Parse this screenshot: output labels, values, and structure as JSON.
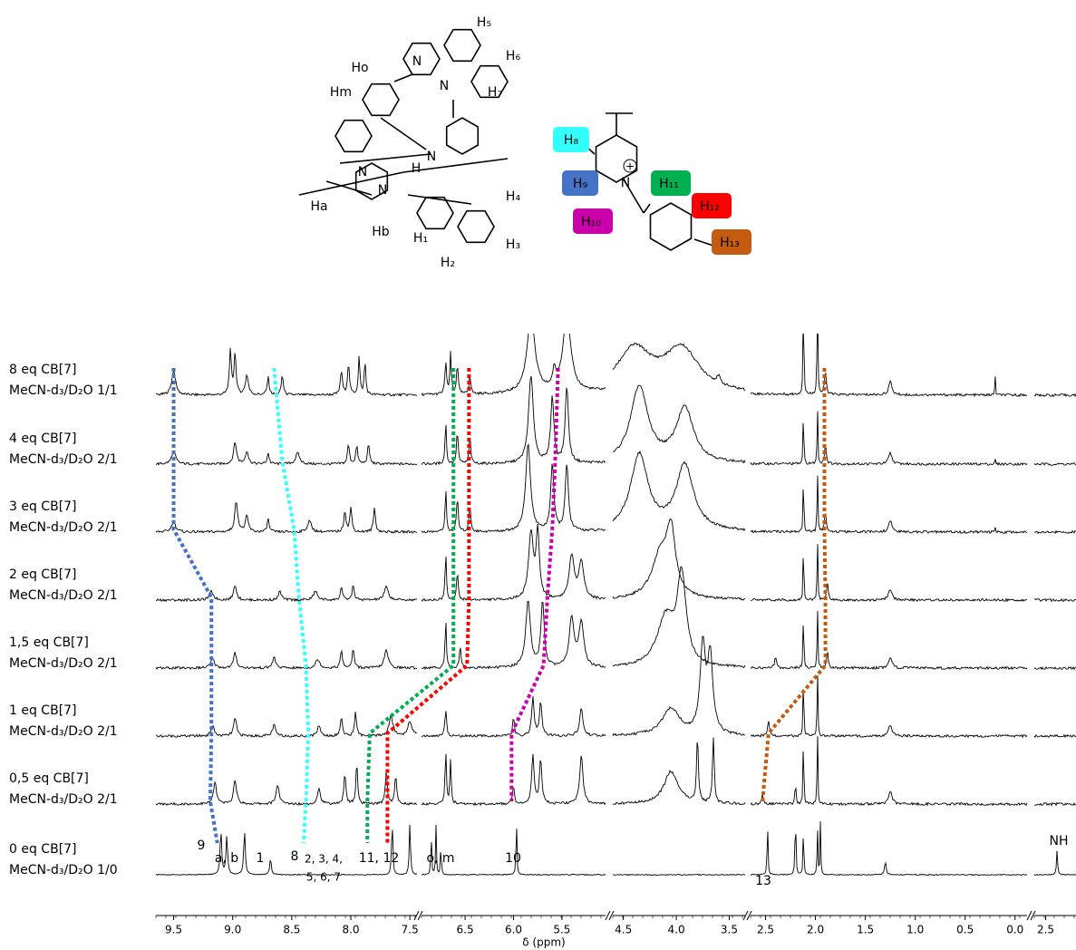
{
  "figure": {
    "axis": {
      "label": "δ (ppm)",
      "segments": [
        {
          "xlim": [
            9.65,
            7.44
          ],
          "xticks": [
            9.5,
            {
              "value": 9,
              "label": "9.0"
            },
            8.5,
            {
              "value": 8,
              "label": "8.0"
            },
            7.5
          ]
        },
        {
          "xlim": [
            6.95,
            5.05
          ],
          "xticks": [
            6.5,
            {
              "value": 6,
              "label": "6.0"
            },
            5.5
          ]
        },
        {
          "xlim": [
            4.6,
            3.35
          ],
          "xticks": [
            4.5,
            {
              "value": 4,
              "label": "4.0"
            },
            3.5
          ]
        },
        {
          "xlim": [
            2.65,
            -0.12
          ],
          "xticks": [
            2.5,
            {
              "value": 2,
              "label": "2.0"
            },
            1.5,
            {
              "value": 1,
              "label": "1.0"
            },
            0.5,
            {
              "value": 0,
              "label": "0.0"
            }
          ]
        },
        {
          "xlim": [
            -2.35,
            -2.9
          ],
          "xticks": [
            {
              "value": -2.5,
              "label": "2.5"
            }
          ]
        }
      ]
    },
    "spectra": [
      {
        "title": "8 eq CB[7]",
        "solvent": "MeCN-d₃/D₂O 1/1",
        "peaks": [
          [
            9.5,
            22,
            0.02
          ],
          [
            9.02,
            40,
            0.01
          ],
          [
            8.98,
            38,
            0.01
          ],
          [
            8.88,
            18,
            0.015
          ],
          [
            8.7,
            16,
            0.01
          ],
          [
            8.58,
            18,
            0.01
          ],
          [
            8.08,
            22,
            0.01
          ],
          [
            8.02,
            28,
            0.01
          ],
          [
            7.93,
            35,
            0.008
          ],
          [
            7.88,
            30,
            0.008
          ],
          [
            6.7,
            30,
            0.01
          ],
          [
            6.65,
            38,
            0.008
          ],
          [
            6.58,
            28,
            0.01
          ],
          [
            6.45,
            18,
            0.01
          ],
          [
            5.82,
            70,
            0.05
          ],
          [
            5.45,
            70,
            0.05
          ],
          [
            5.58,
            15,
            0.02
          ],
          [
            4.4,
            40,
            0.2
          ],
          [
            3.95,
            40,
            0.2
          ],
          [
            3.6,
            6,
            0.02
          ],
          [
            2.12,
            90,
            0.005
          ],
          [
            1.98,
            90,
            0.005
          ],
          [
            1.9,
            22,
            0.01
          ],
          [
            1.25,
            12,
            0.02
          ],
          [
            0.2,
            25,
            0.003
          ]
        ]
      },
      {
        "title": "4 eq CB[7]",
        "solvent": "MeCN-d₃/D₂O 2/1",
        "peaks": [
          [
            9.5,
            12,
            0.02
          ],
          [
            8.98,
            20,
            0.015
          ],
          [
            8.88,
            12,
            0.015
          ],
          [
            8.7,
            10,
            0.01
          ],
          [
            8.45,
            10,
            0.02
          ],
          [
            8.02,
            18,
            0.01
          ],
          [
            7.95,
            16,
            0.01
          ],
          [
            7.85,
            18,
            0.01
          ],
          [
            6.7,
            40,
            0.008
          ],
          [
            6.58,
            30,
            0.01
          ],
          [
            6.45,
            25,
            0.01
          ],
          [
            5.82,
            80,
            0.03
          ],
          [
            5.6,
            60,
            0.02
          ],
          [
            5.45,
            70,
            0.02
          ],
          [
            4.35,
            70,
            0.1
          ],
          [
            3.92,
            50,
            0.1
          ],
          [
            2.12,
            60,
            0.004
          ],
          [
            1.98,
            60,
            0.004
          ],
          [
            1.9,
            18,
            0.01
          ],
          [
            1.25,
            10,
            0.02
          ],
          [
            0.2,
            6,
            0.003
          ]
        ]
      },
      {
        "title": "3 eq CB[7]",
        "solvent": "MeCN-d₃/D₂O 2/1",
        "peaks": [
          [
            9.5,
            10,
            0.02
          ],
          [
            8.97,
            28,
            0.015
          ],
          [
            8.88,
            14,
            0.015
          ],
          [
            8.7,
            12,
            0.01
          ],
          [
            8.35,
            10,
            0.02
          ],
          [
            8.05,
            20,
            0.01
          ],
          [
            8.0,
            22,
            0.01
          ],
          [
            7.8,
            22,
            0.01
          ],
          [
            6.7,
            40,
            0.008
          ],
          [
            6.58,
            32,
            0.01
          ],
          [
            6.45,
            25,
            0.01
          ],
          [
            5.85,
            80,
            0.03
          ],
          [
            5.6,
            60,
            0.02
          ],
          [
            5.45,
            60,
            0.02
          ],
          [
            4.35,
            70,
            0.1
          ],
          [
            3.92,
            60,
            0.1
          ],
          [
            2.12,
            65,
            0.004
          ],
          [
            1.98,
            65,
            0.004
          ],
          [
            1.9,
            20,
            0.01
          ],
          [
            1.25,
            10,
            0.02
          ],
          [
            0.2,
            6,
            0.003
          ]
        ]
      },
      {
        "title": "2 eq CB[7]",
        "solvent": "MeCN-d₃/D₂O 2/1",
        "peaks": [
          [
            9.18,
            8,
            0.02
          ],
          [
            8.98,
            14,
            0.015
          ],
          [
            8.6,
            8,
            0.015
          ],
          [
            8.3,
            8,
            0.02
          ],
          [
            8.08,
            12,
            0.01
          ],
          [
            7.98,
            14,
            0.01
          ],
          [
            7.7,
            12,
            0.02
          ],
          [
            6.7,
            45,
            0.008
          ],
          [
            6.58,
            25,
            0.01
          ],
          [
            5.82,
            60,
            0.03
          ],
          [
            5.75,
            60,
            0.02
          ],
          [
            5.4,
            40,
            0.03
          ],
          [
            5.3,
            35,
            0.03
          ],
          [
            4.15,
            40,
            0.1
          ],
          [
            4.05,
            55,
            0.05
          ],
          [
            2.12,
            65,
            0.004
          ],
          [
            1.98,
            65,
            0.004
          ],
          [
            1.88,
            15,
            0.01
          ],
          [
            1.25,
            10,
            0.02
          ]
        ]
      },
      {
        "title": "1,5 eq CB[7]",
        "solvent": "MeCN-d₃/D₂O 2/1",
        "peaks": [
          [
            9.17,
            8,
            0.02
          ],
          [
            8.98,
            14,
            0.015
          ],
          [
            8.65,
            10,
            0.015
          ],
          [
            8.28,
            8,
            0.02
          ],
          [
            8.08,
            16,
            0.01
          ],
          [
            7.98,
            18,
            0.01
          ],
          [
            7.7,
            16,
            0.02
          ],
          [
            6.7,
            45,
            0.008
          ],
          [
            6.55,
            20,
            0.01
          ],
          [
            5.85,
            60,
            0.03
          ],
          [
            5.7,
            60,
            0.02
          ],
          [
            5.4,
            45,
            0.03
          ],
          [
            5.3,
            40,
            0.03
          ],
          [
            4.1,
            45,
            0.1
          ],
          [
            3.95,
            80,
            0.05
          ],
          [
            2.4,
            10,
            0.01
          ],
          [
            2.12,
            65,
            0.004
          ],
          [
            1.98,
            65,
            0.004
          ],
          [
            1.88,
            15,
            0.01
          ],
          [
            1.25,
            10,
            0.02
          ]
        ]
      },
      {
        "title": "1 eq CB[7]",
        "solvent": "MeCN-d₃/D₂O 2/1",
        "peaks": [
          [
            9.17,
            10,
            0.015
          ],
          [
            8.98,
            16,
            0.015
          ],
          [
            8.65,
            10,
            0.015
          ],
          [
            8.27,
            10,
            0.015
          ],
          [
            8.08,
            18,
            0.01
          ],
          [
            7.96,
            22,
            0.01
          ],
          [
            7.66,
            18,
            0.02
          ],
          [
            7.5,
            14,
            0.02
          ],
          [
            6.7,
            25,
            0.01
          ],
          [
            6.0,
            18,
            0.01
          ],
          [
            5.8,
            35,
            0.015
          ],
          [
            5.72,
            30,
            0.015
          ],
          [
            5.3,
            25,
            0.02
          ],
          [
            4.05,
            25,
            0.1
          ],
          [
            3.75,
            80,
            0.03
          ],
          [
            3.68,
            70,
            0.03
          ],
          [
            2.47,
            15,
            0.01
          ],
          [
            2.12,
            70,
            0.004
          ],
          [
            1.98,
            70,
            0.004
          ],
          [
            1.25,
            10,
            0.02
          ]
        ]
      },
      {
        "title": "0,5 eq CB[7]",
        "solvent": "MeCN-d₃/D₂O 2/1",
        "peaks": [
          [
            9.15,
            20,
            0.015
          ],
          [
            8.98,
            22,
            0.015
          ],
          [
            8.62,
            18,
            0.015
          ],
          [
            8.27,
            14,
            0.015
          ],
          [
            8.05,
            28,
            0.01
          ],
          [
            7.95,
            40,
            0.008
          ],
          [
            7.7,
            30,
            0.01
          ],
          [
            7.62,
            25,
            0.01
          ],
          [
            6.7,
            50,
            0.008
          ],
          [
            6.65,
            40,
            0.008
          ],
          [
            6.0,
            18,
            0.01
          ],
          [
            5.8,
            45,
            0.015
          ],
          [
            5.72,
            40,
            0.015
          ],
          [
            5.3,
            45,
            0.02
          ],
          [
            4.05,
            30,
            0.08
          ],
          [
            3.8,
            60,
            0.01
          ],
          [
            3.65,
            60,
            0.01
          ],
          [
            2.53,
            8,
            0.01
          ],
          [
            2.2,
            25,
            0.005
          ],
          [
            2.12,
            80,
            0.004
          ],
          [
            1.98,
            80,
            0.004
          ],
          [
            1.25,
            12,
            0.02
          ]
        ]
      },
      {
        "title": "0 eq CB[7]",
        "solvent": "MeCN-d₃/D₂O 1/0",
        "peaks": [
          [
            9.1,
            40,
            0.008
          ],
          [
            9.05,
            35,
            0.008
          ],
          [
            8.9,
            40,
            0.008
          ],
          [
            8.68,
            15,
            0.008
          ],
          [
            7.65,
            50,
            0.006
          ],
          [
            7.5,
            48,
            0.006
          ],
          [
            6.85,
            40,
            0.005
          ],
          [
            6.8,
            45,
            0.005
          ],
          [
            6.75,
            30,
            0.005
          ],
          [
            5.97,
            55,
            0.005
          ],
          [
            2.48,
            50,
            0.005
          ],
          [
            2.2,
            62,
            0.005
          ],
          [
            2.12,
            55,
            0.004
          ],
          [
            1.98,
            50,
            0.004
          ],
          [
            1.95,
            50,
            0.004
          ],
          [
            1.3,
            12,
            0.01
          ],
          [
            -2.65,
            22,
            0.008
          ]
        ]
      }
    ],
    "correlations": [
      {
        "color": "#4472c4",
        "ppm": [
          9.5,
          9.5,
          9.5,
          9.18,
          9.18,
          9.18,
          9.19,
          9.13
        ]
      },
      {
        "color": "#33ffff",
        "ppm": [
          8.65,
          8.58,
          8.48,
          8.44,
          8.38,
          8.36,
          8.38,
          8.4
        ]
      },
      {
        "color": "#00b050",
        "ppm": [
          6.62,
          6.62,
          6.62,
          6.62,
          6.62,
          7.84,
          7.86,
          7.86
        ]
      },
      {
        "color": "#ff0000",
        "ppm": [
          6.46,
          6.46,
          6.46,
          6.46,
          6.48,
          7.69,
          7.69,
          7.69
        ]
      },
      {
        "color": "#cc00aa",
        "ppm": [
          5.54,
          5.57,
          5.6,
          5.65,
          5.69,
          6.02,
          6.02,
          null
        ]
      },
      {
        "color": "#c55a11",
        "ppm": [
          1.91,
          1.91,
          1.91,
          1.9,
          1.9,
          2.47,
          2.53,
          null
        ]
      }
    ],
    "peak_labels": [
      "9",
      "a, b",
      "1",
      "8",
      "2, 3, 4,",
      "5, 6, 7",
      "11, 12",
      "o, m",
      "10",
      "13",
      "NH"
    ],
    "molecule_1": {
      "labels": [
        "H₅",
        "H₆",
        "H₇",
        "Ho",
        "Hm",
        "N",
        "N",
        "N",
        "H",
        "N",
        "N",
        "Ha",
        "Hb",
        "H₁",
        "H₂",
        "H₃",
        "H₄"
      ]
    },
    "molecule_2": {
      "labels": [
        {
          "text": "H₈",
          "color": "#33ffff"
        },
        {
          "text": "H₉",
          "color": "#4472c4"
        },
        {
          "text": "H₁₀",
          "color": "#cc00aa"
        },
        {
          "text": "H₁₁",
          "color": "#00b050"
        },
        {
          "text": "H₁₂",
          "color": "#ff0000"
        },
        {
          "text": "H₁₃",
          "color": "#c55a11"
        }
      ],
      "nitrogen": "N",
      "charge": "+"
    }
  }
}
